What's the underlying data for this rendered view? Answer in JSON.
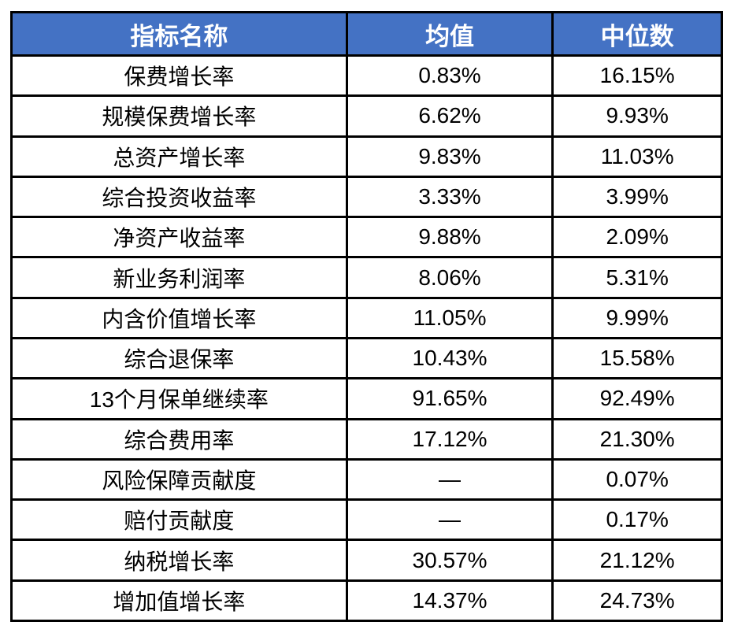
{
  "table": {
    "columns": [
      {
        "label": "指标名称"
      },
      {
        "label": "均值"
      },
      {
        "label": "中位数"
      }
    ],
    "rows": [
      {
        "name": "保费增长率",
        "mean": "0.83%",
        "median": "16.15%"
      },
      {
        "name": "规模保费增长率",
        "mean": "6.62%",
        "median": "9.93%"
      },
      {
        "name": "总资产增长率",
        "mean": "9.83%",
        "median": "11.03%"
      },
      {
        "name": "综合投资收益率",
        "mean": "3.33%",
        "median": "3.99%"
      },
      {
        "name": "净资产收益率",
        "mean": "9.88%",
        "median": "2.09%"
      },
      {
        "name": "新业务利润率",
        "mean": "8.06%",
        "median": "5.31%"
      },
      {
        "name": "内含价值增长率",
        "mean": "11.05%",
        "median": "9.99%"
      },
      {
        "name": "综合退保率",
        "mean": "10.43%",
        "median": "15.58%"
      },
      {
        "name": "13个月保单继续率",
        "mean": "91.65%",
        "median": "92.49%"
      },
      {
        "name": "综合费用率",
        "mean": "17.12%",
        "median": "21.30%"
      },
      {
        "name": "风险保障贡献度",
        "mean": "—",
        "median": "0.07%"
      },
      {
        "name": "赔付贡献度",
        "mean": "—",
        "median": "0.17%"
      },
      {
        "name": "纳税增长率",
        "mean": "30.57%",
        "median": "21.12%"
      },
      {
        "name": "增加值增长率",
        "mean": "14.37%",
        "median": "24.73%"
      }
    ]
  },
  "colors": {
    "header_bg": "#4472C4",
    "header_text": "#FFFFFF",
    "border": "#000000",
    "cell_bg": "#FFFFFF",
    "cell_text": "#000000"
  },
  "chart_data": {
    "type": "table",
    "title": "",
    "columns": [
      "指标名称",
      "均值",
      "中位数"
    ],
    "rows": [
      [
        "保费增长率",
        "0.83%",
        "16.15%"
      ],
      [
        "规模保费增长率",
        "6.62%",
        "9.93%"
      ],
      [
        "总资产增长率",
        "9.83%",
        "11.03%"
      ],
      [
        "综合投资收益率",
        "3.33%",
        "3.99%"
      ],
      [
        "净资产收益率",
        "9.88%",
        "2.09%"
      ],
      [
        "新业务利润率",
        "8.06%",
        "5.31%"
      ],
      [
        "内含价值增长率",
        "11.05%",
        "9.99%"
      ],
      [
        "综合退保率",
        "10.43%",
        "15.58%"
      ],
      [
        "13个月保单继续率",
        "91.65%",
        "92.49%"
      ],
      [
        "综合费用率",
        "17.12%",
        "21.30%"
      ],
      [
        "风险保障贡献度",
        "—",
        "0.07%"
      ],
      [
        "赔付贡献度",
        "—",
        "0.17%"
      ],
      [
        "纳税增长率",
        "30.57%",
        "21.12%"
      ],
      [
        "增加值增长率",
        "14.37%",
        "24.73%"
      ]
    ]
  }
}
